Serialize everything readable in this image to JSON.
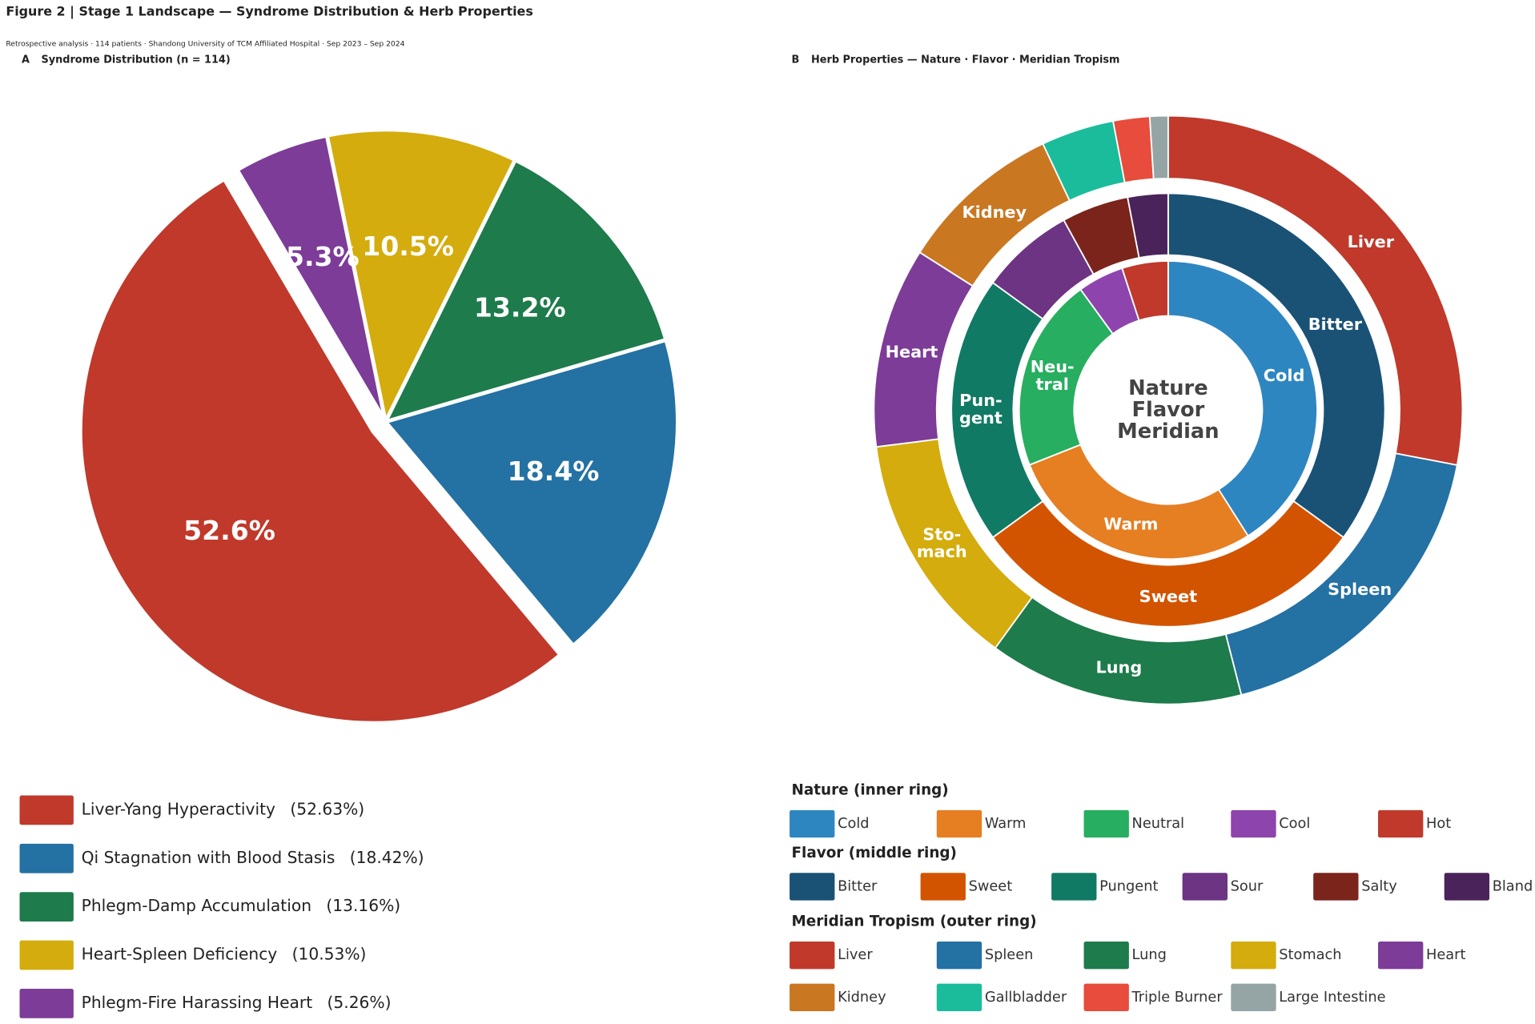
{
  "title": "Figure 2  |  Stage 1 Landscape — Syndrome Distribution & Herb Properties",
  "subtitle": "Retrospective analysis · 114 patients · Shandong University of TCM Affiliated Hospital · Sep 2023 – Sep 2024",
  "chart_data": [
    {
      "type": "pie",
      "panel": "A",
      "title": "Syndrome Distribution (n = 114)",
      "categories": [
        "Liver-Yang Hyperactivity",
        "Qi Stagnation with Blood Stasis",
        "Phlegm-Damp Accumulation",
        "Heart-Spleen Deficiency",
        "Phlegm-Fire Harassing Heart"
      ],
      "values": [
        52.63,
        18.42,
        13.16,
        10.53,
        5.26
      ],
      "value_labels": [
        "52.6%",
        "18.4%",
        "13.2%",
        "10.5%",
        "5.3%"
      ],
      "legend_value_labels": [
        "(52.63%)",
        "(18.42%)",
        "(13.16%)",
        "(10.53%)",
        "(5.26%)"
      ],
      "colors": [
        "#c0392b",
        "#2471a3",
        "#1e7b4b",
        "#d4ac0d",
        "#7d3c98"
      ]
    },
    {
      "type": "nested_donut",
      "panel": "B",
      "title": "Herb Properties — Nature · Flavor · Meridian Tropism",
      "center_label": "Nature\nFlavor\nMeridian",
      "rings": [
        {
          "name": "Nature (inner ring)",
          "categories": [
            "Cold",
            "Warm",
            "Neutral",
            "Cool",
            "Hot"
          ],
          "values": [
            41,
            28,
            21,
            5,
            5
          ],
          "slice_labels": [
            "Cold",
            "Warm",
            "Neu-\ntral",
            null,
            null
          ],
          "colors": [
            "#2e86c1",
            "#e67e22",
            "#27ae60",
            "#8e44ad",
            "#c0392b"
          ]
        },
        {
          "name": "Flavor (middle ring)",
          "categories": [
            "Bitter",
            "Sweet",
            "Pungent",
            "Sour",
            "Salty",
            "Bland"
          ],
          "values": [
            35,
            30,
            20,
            7,
            5,
            3
          ],
          "slice_labels": [
            "Bitter",
            "Sweet",
            "Pun-\ngent",
            null,
            null,
            null
          ],
          "colors": [
            "#1a5276",
            "#d35400",
            "#117a65",
            "#6c3483",
            "#7b241c",
            "#4a235a"
          ]
        },
        {
          "name": "Meridian Tropism (outer ring)",
          "categories": [
            "Liver",
            "Spleen",
            "Lung",
            "Stomach",
            "Heart",
            "Kidney",
            "Gallbladder",
            "Triple Burner",
            "Large Intestine"
          ],
          "values": [
            28,
            18,
            14,
            13,
            11,
            9,
            4,
            2,
            1
          ],
          "slice_labels": [
            "Liver",
            "Spleen",
            "Lung",
            "Sto-\nmach",
            "Heart",
            "Kidney",
            null,
            null,
            null
          ],
          "colors": [
            "#c0392b",
            "#2471a3",
            "#1e7b4b",
            "#d4ac0d",
            "#7d3c98",
            "#ca7722",
            "#1abc9c",
            "#e74c3c",
            "#95a5a6"
          ]
        }
      ]
    }
  ]
}
